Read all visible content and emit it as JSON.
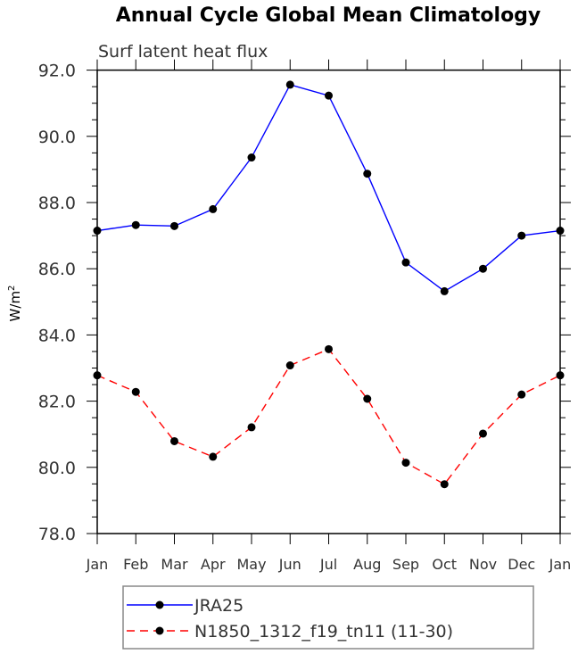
{
  "chart_data": {
    "type": "line",
    "title": "Annual Cycle Global Mean Climatology",
    "subtitle": "Surf latent heat flux",
    "ylabel": "W/m",
    "ylabel_superscript": "2",
    "xlabel": "",
    "categories": [
      "Jan",
      "Feb",
      "Mar",
      "Apr",
      "May",
      "Jun",
      "Jul",
      "Aug",
      "Sep",
      "Oct",
      "Nov",
      "Dec",
      "Jan"
    ],
    "ylim": [
      78.0,
      92.0
    ],
    "yticks": [
      "78.0",
      "80.0",
      "82.0",
      "84.0",
      "86.0",
      "88.0",
      "90.0",
      "92.0"
    ],
    "grid": false,
    "legend_position": "bottom",
    "series": [
      {
        "name": "JRA25",
        "color": "#0000ff",
        "dash": "solid",
        "values": [
          87.15,
          87.32,
          87.29,
          87.8,
          89.36,
          91.56,
          91.23,
          88.87,
          86.19,
          85.32,
          86.0,
          87.0,
          87.15
        ]
      },
      {
        "name": "N1850_1312_f19_tn11 (11-30)",
        "color": "#ff0000",
        "dash": "dashed",
        "values": [
          82.78,
          82.28,
          80.79,
          80.32,
          81.21,
          83.08,
          83.57,
          82.07,
          80.14,
          79.49,
          81.02,
          82.2,
          82.78
        ]
      }
    ]
  }
}
